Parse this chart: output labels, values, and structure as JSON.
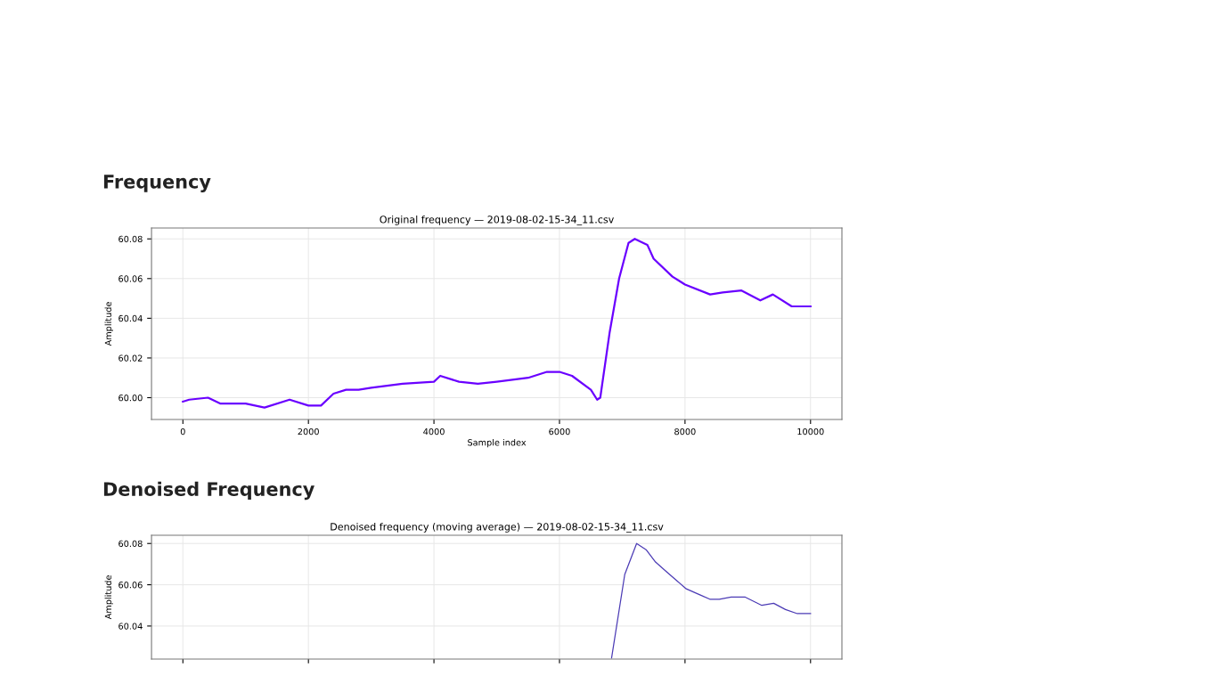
{
  "chart_data": [
    {
      "type": "line",
      "title": "Frequency",
      "subtitle": "Original frequency — 2019-08-02-15-34_11.csv",
      "xlabel": "Sample index",
      "ylabel": "Amplitude",
      "x": [
        0,
        100,
        400,
        600,
        1000,
        1300,
        1700,
        2000,
        2200,
        2400,
        2600,
        2800,
        3000,
        3500,
        4000,
        4100,
        4400,
        4700,
        5000,
        5500,
        5800,
        6000,
        6200,
        6500,
        6600,
        6650,
        6800,
        6950,
        7100,
        7200,
        7400,
        7500,
        7800,
        8000,
        8400,
        8600,
        8900,
        9200,
        9400,
        9700,
        10000
      ],
      "series": [
        {
          "color": "#6a00ff",
          "values": [
            59.998,
            59.999,
            60.0,
            59.997,
            59.997,
            59.995,
            59.999,
            59.996,
            59.996,
            60.002,
            60.004,
            60.004,
            60.005,
            60.007,
            60.008,
            60.011,
            60.008,
            60.007,
            60.008,
            60.01,
            60.013,
            60.013,
            60.011,
            60.004,
            59.999,
            60.0,
            60.033,
            60.06,
            60.078,
            60.08,
            60.077,
            60.07,
            60.061,
            60.057,
            60.052,
            60.053,
            60.054,
            60.049,
            60.052,
            60.046,
            60.046
          ]
        }
      ],
      "xlim": [
        -500,
        10500
      ],
      "ylim": [
        59.989,
        60.0855
      ],
      "xticks": [
        0,
        2000,
        4000,
        6000,
        8000,
        10000
      ],
      "yticks": [
        {
          "value": 60.0,
          "label": "60.00"
        },
        {
          "value": 60.02,
          "label": "60.02"
        },
        {
          "value": 60.04,
          "label": "60.04"
        },
        {
          "value": 60.06,
          "label": "60.06"
        },
        {
          "value": 60.08,
          "label": "60.08"
        }
      ],
      "grid": true
    },
    {
      "type": "line",
      "title": "Denoised Frequency",
      "subtitle": "Denoised frequency (moving average) — 2019-08-02-15-34_11.csv",
      "ylabel": "Amplitude",
      "x": [
        6830,
        7040,
        7229,
        7380,
        7530,
        7718,
        7869,
        8020,
        8245,
        8395,
        8546,
        8735,
        8960,
        9224,
        9413,
        9601,
        9789,
        10000
      ],
      "series": [
        {
          "color": "#4b3bb5",
          "values": [
            60.0245,
            60.065,
            60.08,
            60.077,
            60.071,
            60.066,
            60.062,
            60.058,
            60.055,
            60.053,
            60.053,
            60.054,
            60.054,
            60.05,
            60.051,
            60.048,
            60.046,
            60.046
          ]
        }
      ],
      "xlim": [
        -500,
        10500
      ],
      "ylim": [
        60.024,
        60.084
      ],
      "xticks": [
        0,
        2000,
        4000,
        6000,
        8000,
        10000
      ],
      "yticks": [
        {
          "value": 60.04,
          "label": "60.04"
        },
        {
          "value": 60.06,
          "label": "60.06"
        },
        {
          "value": 60.08,
          "label": "60.08"
        }
      ],
      "grid": true,
      "tick_labels": "y"
    }
  ]
}
